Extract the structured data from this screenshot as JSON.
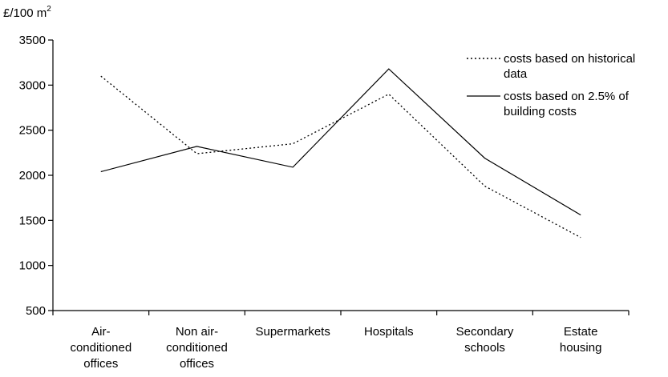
{
  "chart_data": {
    "type": "line",
    "unit_label": "£/100 m",
    "unit_superscript": "2",
    "ylim": [
      500,
      3500
    ],
    "yticks": [
      500,
      1000,
      1500,
      2000,
      2500,
      3000,
      3500
    ],
    "categories": [
      [
        "Air-",
        "conditioned",
        "offices"
      ],
      [
        "Non air-",
        "conditioned",
        "offices"
      ],
      [
        "Supermarkets"
      ],
      [
        "Hospitals"
      ],
      [
        "Secondary",
        "schools"
      ],
      [
        "Estate",
        "housing"
      ]
    ],
    "series": [
      {
        "name_lines": [
          "costs based on historical",
          "data"
        ],
        "style": "dotted",
        "color": "#000000",
        "values": [
          3100,
          2240,
          2350,
          2900,
          1880,
          1310
        ]
      },
      {
        "name_lines": [
          "costs based on 2.5% of",
          "building costs"
        ],
        "style": "solid",
        "color": "#000000",
        "values": [
          2040,
          2320,
          2090,
          3180,
          2190,
          1560
        ]
      }
    ],
    "grid": false,
    "legend_position": "top-right"
  }
}
